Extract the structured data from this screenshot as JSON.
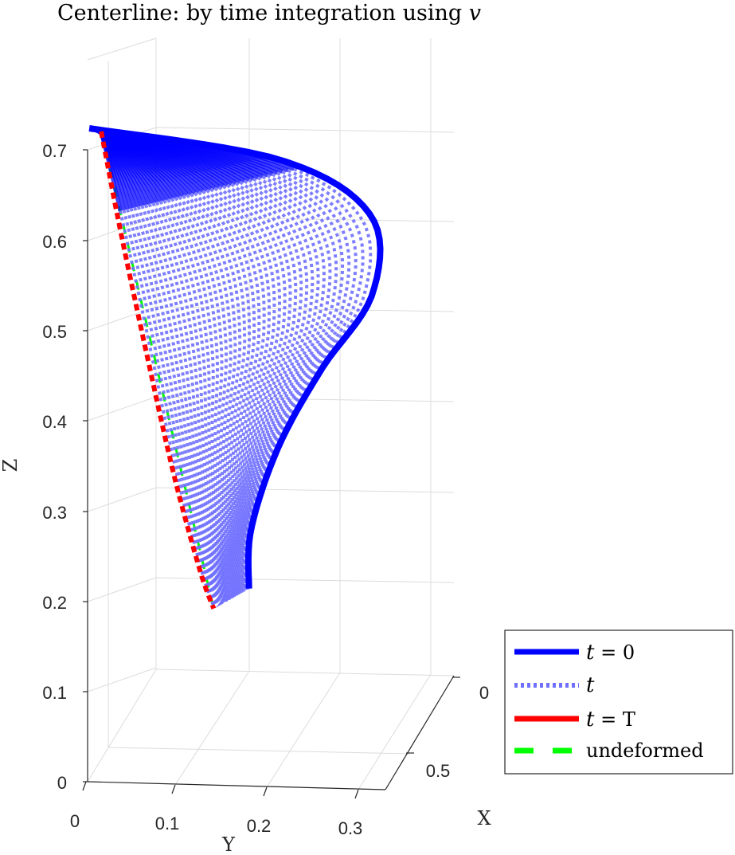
{
  "chart_data": {
    "type": "line",
    "projection": "3d",
    "title": "Centerline: by time integration using v",
    "title_prefix": "Centerline: by time integration using ",
    "title_var": "v",
    "xlabel": "X",
    "ylabel": "Y",
    "zlabel": "Z",
    "xlim": [
      0,
      0.6
    ],
    "ylim": [
      0,
      0.33
    ],
    "zlim": [
      0,
      0.72
    ],
    "x_ticks": [
      "0",
      "0.5"
    ],
    "y_ticks": [
      "0",
      "0.1",
      "0.2",
      "0.3"
    ],
    "z_ticks": [
      "0",
      "0.1",
      "0.2",
      "0.3",
      "0.4",
      "0.5",
      "0.6",
      "0.7"
    ],
    "grid": true,
    "legend_position": "bottom-right",
    "legend": [
      {
        "label": "t = 0",
        "var": "t",
        "rest": " = 0",
        "color": "#0000ff",
        "style": "solid"
      },
      {
        "label": "t",
        "var": "t",
        "rest": "",
        "color": "#7070ff",
        "style": "dotted"
      },
      {
        "label": "t = T",
        "var": "t",
        "rest": " = T",
        "color": "#ff0000",
        "style": "solid"
      },
      {
        "label": "undeformed",
        "var": "",
        "rest": "undeformed",
        "color": "#00ff00",
        "style": "dashed"
      }
    ],
    "series": [
      {
        "name": "t = 0",
        "color": "#0000ff",
        "points": [
          [
            0.015,
            0.0,
            0.72
          ],
          [
            0.09,
            0.2,
            0.675
          ],
          [
            0.17,
            0.29,
            0.6
          ],
          [
            0.23,
            0.285,
            0.5
          ],
          [
            0.3,
            0.22,
            0.4
          ],
          [
            0.36,
            0.165,
            0.3
          ],
          [
            0.4,
            0.13,
            0.2
          ],
          [
            0.42,
            0.125,
            0.13
          ]
        ]
      },
      {
        "name": "t = T",
        "color": "#ff0000",
        "points": [
          [
            0.0,
            0.015,
            0.72
          ],
          [
            0.05,
            0.03,
            0.6
          ],
          [
            0.12,
            0.05,
            0.45
          ],
          [
            0.2,
            0.07,
            0.3
          ],
          [
            0.27,
            0.09,
            0.18
          ],
          [
            0.31,
            0.1,
            0.13
          ]
        ]
      },
      {
        "name": "undeformed",
        "color": "#00ff00",
        "points": [
          [
            0.0,
            0.015,
            0.72
          ],
          [
            0.31,
            0.1,
            0.13
          ]
        ]
      }
    ],
    "intermediate_count": 44
  },
  "colors": {
    "t0": "#0000ff",
    "t": "#7070ff",
    "tT": "#ff0000",
    "undeformed": "#00ff00",
    "grid": "#dcdcdc",
    "axis": "#262626"
  }
}
